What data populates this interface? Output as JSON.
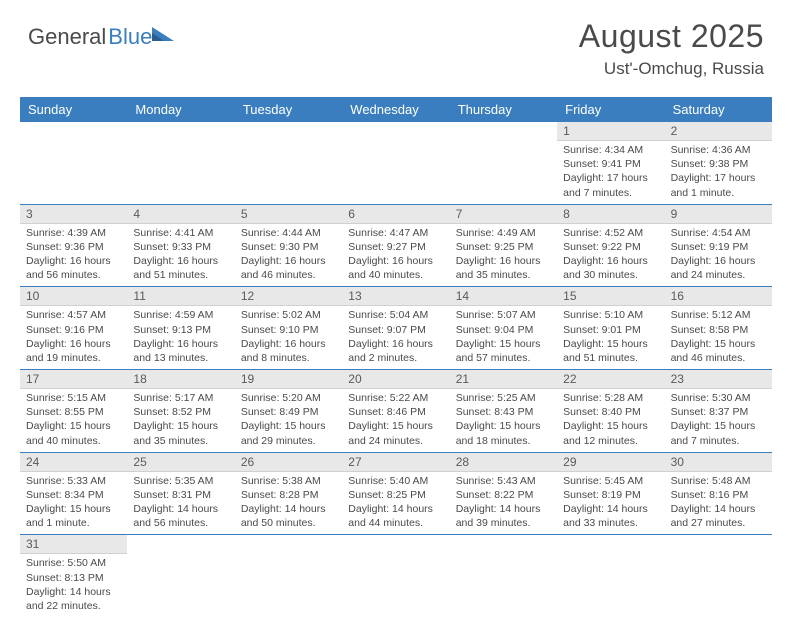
{
  "logo": {
    "part1": "General",
    "part2": "Blue"
  },
  "title": "August 2025",
  "location": "Ust'-Omchug, Russia",
  "colors": {
    "header_bg": "#3a7ebf",
    "header_text": "#ffffff",
    "daynum_bg": "#e8e8e8",
    "border": "#3a7ebf"
  },
  "dayNames": [
    "Sunday",
    "Monday",
    "Tuesday",
    "Wednesday",
    "Thursday",
    "Friday",
    "Saturday"
  ],
  "weeks": [
    [
      {
        "n": "",
        "sr": "",
        "ss": "",
        "dl": ""
      },
      {
        "n": "",
        "sr": "",
        "ss": "",
        "dl": ""
      },
      {
        "n": "",
        "sr": "",
        "ss": "",
        "dl": ""
      },
      {
        "n": "",
        "sr": "",
        "ss": "",
        "dl": ""
      },
      {
        "n": "",
        "sr": "",
        "ss": "",
        "dl": ""
      },
      {
        "n": "1",
        "sr": "Sunrise: 4:34 AM",
        "ss": "Sunset: 9:41 PM",
        "dl": "Daylight: 17 hours and 7 minutes."
      },
      {
        "n": "2",
        "sr": "Sunrise: 4:36 AM",
        "ss": "Sunset: 9:38 PM",
        "dl": "Daylight: 17 hours and 1 minute."
      }
    ],
    [
      {
        "n": "3",
        "sr": "Sunrise: 4:39 AM",
        "ss": "Sunset: 9:36 PM",
        "dl": "Daylight: 16 hours and 56 minutes."
      },
      {
        "n": "4",
        "sr": "Sunrise: 4:41 AM",
        "ss": "Sunset: 9:33 PM",
        "dl": "Daylight: 16 hours and 51 minutes."
      },
      {
        "n": "5",
        "sr": "Sunrise: 4:44 AM",
        "ss": "Sunset: 9:30 PM",
        "dl": "Daylight: 16 hours and 46 minutes."
      },
      {
        "n": "6",
        "sr": "Sunrise: 4:47 AM",
        "ss": "Sunset: 9:27 PM",
        "dl": "Daylight: 16 hours and 40 minutes."
      },
      {
        "n": "7",
        "sr": "Sunrise: 4:49 AM",
        "ss": "Sunset: 9:25 PM",
        "dl": "Daylight: 16 hours and 35 minutes."
      },
      {
        "n": "8",
        "sr": "Sunrise: 4:52 AM",
        "ss": "Sunset: 9:22 PM",
        "dl": "Daylight: 16 hours and 30 minutes."
      },
      {
        "n": "9",
        "sr": "Sunrise: 4:54 AM",
        "ss": "Sunset: 9:19 PM",
        "dl": "Daylight: 16 hours and 24 minutes."
      }
    ],
    [
      {
        "n": "10",
        "sr": "Sunrise: 4:57 AM",
        "ss": "Sunset: 9:16 PM",
        "dl": "Daylight: 16 hours and 19 minutes."
      },
      {
        "n": "11",
        "sr": "Sunrise: 4:59 AM",
        "ss": "Sunset: 9:13 PM",
        "dl": "Daylight: 16 hours and 13 minutes."
      },
      {
        "n": "12",
        "sr": "Sunrise: 5:02 AM",
        "ss": "Sunset: 9:10 PM",
        "dl": "Daylight: 16 hours and 8 minutes."
      },
      {
        "n": "13",
        "sr": "Sunrise: 5:04 AM",
        "ss": "Sunset: 9:07 PM",
        "dl": "Daylight: 16 hours and 2 minutes."
      },
      {
        "n": "14",
        "sr": "Sunrise: 5:07 AM",
        "ss": "Sunset: 9:04 PM",
        "dl": "Daylight: 15 hours and 57 minutes."
      },
      {
        "n": "15",
        "sr": "Sunrise: 5:10 AM",
        "ss": "Sunset: 9:01 PM",
        "dl": "Daylight: 15 hours and 51 minutes."
      },
      {
        "n": "16",
        "sr": "Sunrise: 5:12 AM",
        "ss": "Sunset: 8:58 PM",
        "dl": "Daylight: 15 hours and 46 minutes."
      }
    ],
    [
      {
        "n": "17",
        "sr": "Sunrise: 5:15 AM",
        "ss": "Sunset: 8:55 PM",
        "dl": "Daylight: 15 hours and 40 minutes."
      },
      {
        "n": "18",
        "sr": "Sunrise: 5:17 AM",
        "ss": "Sunset: 8:52 PM",
        "dl": "Daylight: 15 hours and 35 minutes."
      },
      {
        "n": "19",
        "sr": "Sunrise: 5:20 AM",
        "ss": "Sunset: 8:49 PM",
        "dl": "Daylight: 15 hours and 29 minutes."
      },
      {
        "n": "20",
        "sr": "Sunrise: 5:22 AM",
        "ss": "Sunset: 8:46 PM",
        "dl": "Daylight: 15 hours and 24 minutes."
      },
      {
        "n": "21",
        "sr": "Sunrise: 5:25 AM",
        "ss": "Sunset: 8:43 PM",
        "dl": "Daylight: 15 hours and 18 minutes."
      },
      {
        "n": "22",
        "sr": "Sunrise: 5:28 AM",
        "ss": "Sunset: 8:40 PM",
        "dl": "Daylight: 15 hours and 12 minutes."
      },
      {
        "n": "23",
        "sr": "Sunrise: 5:30 AM",
        "ss": "Sunset: 8:37 PM",
        "dl": "Daylight: 15 hours and 7 minutes."
      }
    ],
    [
      {
        "n": "24",
        "sr": "Sunrise: 5:33 AM",
        "ss": "Sunset: 8:34 PM",
        "dl": "Daylight: 15 hours and 1 minute."
      },
      {
        "n": "25",
        "sr": "Sunrise: 5:35 AM",
        "ss": "Sunset: 8:31 PM",
        "dl": "Daylight: 14 hours and 56 minutes."
      },
      {
        "n": "26",
        "sr": "Sunrise: 5:38 AM",
        "ss": "Sunset: 8:28 PM",
        "dl": "Daylight: 14 hours and 50 minutes."
      },
      {
        "n": "27",
        "sr": "Sunrise: 5:40 AM",
        "ss": "Sunset: 8:25 PM",
        "dl": "Daylight: 14 hours and 44 minutes."
      },
      {
        "n": "28",
        "sr": "Sunrise: 5:43 AM",
        "ss": "Sunset: 8:22 PM",
        "dl": "Daylight: 14 hours and 39 minutes."
      },
      {
        "n": "29",
        "sr": "Sunrise: 5:45 AM",
        "ss": "Sunset: 8:19 PM",
        "dl": "Daylight: 14 hours and 33 minutes."
      },
      {
        "n": "30",
        "sr": "Sunrise: 5:48 AM",
        "ss": "Sunset: 8:16 PM",
        "dl": "Daylight: 14 hours and 27 minutes."
      }
    ],
    [
      {
        "n": "31",
        "sr": "Sunrise: 5:50 AM",
        "ss": "Sunset: 8:13 PM",
        "dl": "Daylight: 14 hours and 22 minutes."
      },
      {
        "n": "",
        "sr": "",
        "ss": "",
        "dl": ""
      },
      {
        "n": "",
        "sr": "",
        "ss": "",
        "dl": ""
      },
      {
        "n": "",
        "sr": "",
        "ss": "",
        "dl": ""
      },
      {
        "n": "",
        "sr": "",
        "ss": "",
        "dl": ""
      },
      {
        "n": "",
        "sr": "",
        "ss": "",
        "dl": ""
      },
      {
        "n": "",
        "sr": "",
        "ss": "",
        "dl": ""
      }
    ]
  ]
}
